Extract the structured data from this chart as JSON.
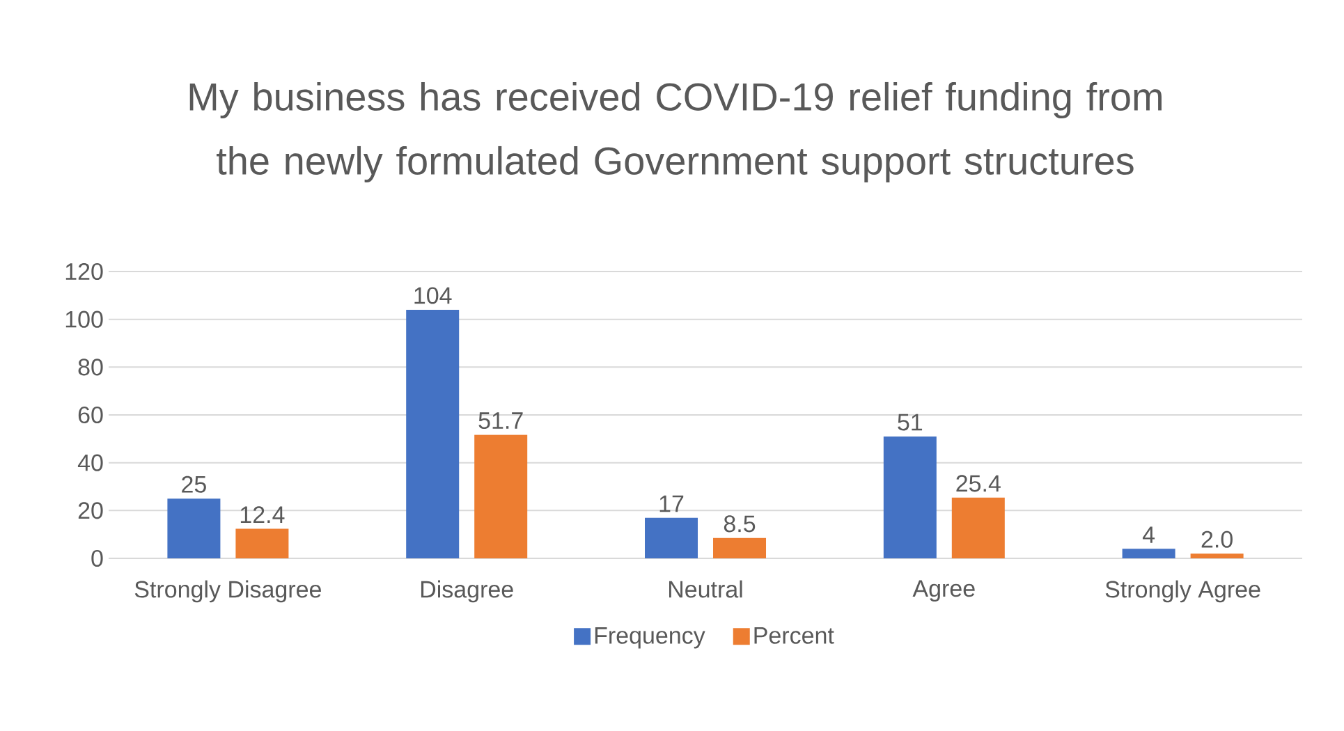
{
  "chart_data": {
    "type": "bar",
    "title": "My business has received COVID-19 relief funding from the newly formulated Government support structures",
    "categories": [
      "Strongly Disagree",
      "Disagree",
      "Neutral",
      "Agree",
      "Strongly Agree"
    ],
    "series": [
      {
        "name": "Frequency",
        "color": "#4472c4",
        "values": [
          25,
          104,
          17,
          51,
          4
        ],
        "value_labels": [
          "25",
          "104",
          "17",
          "51",
          "4"
        ]
      },
      {
        "name": "Percent",
        "color": "#ed7d31",
        "values": [
          12.4,
          51.7,
          8.5,
          25.4,
          2.0
        ],
        "value_labels": [
          "12.4",
          "51.7",
          "8.5",
          "25.4",
          "2.0"
        ]
      }
    ],
    "ylim": [
      0,
      120
    ],
    "yticks": [
      0,
      20,
      40,
      60,
      80,
      100,
      120
    ],
    "grid": "y",
    "legend": "bottom"
  }
}
